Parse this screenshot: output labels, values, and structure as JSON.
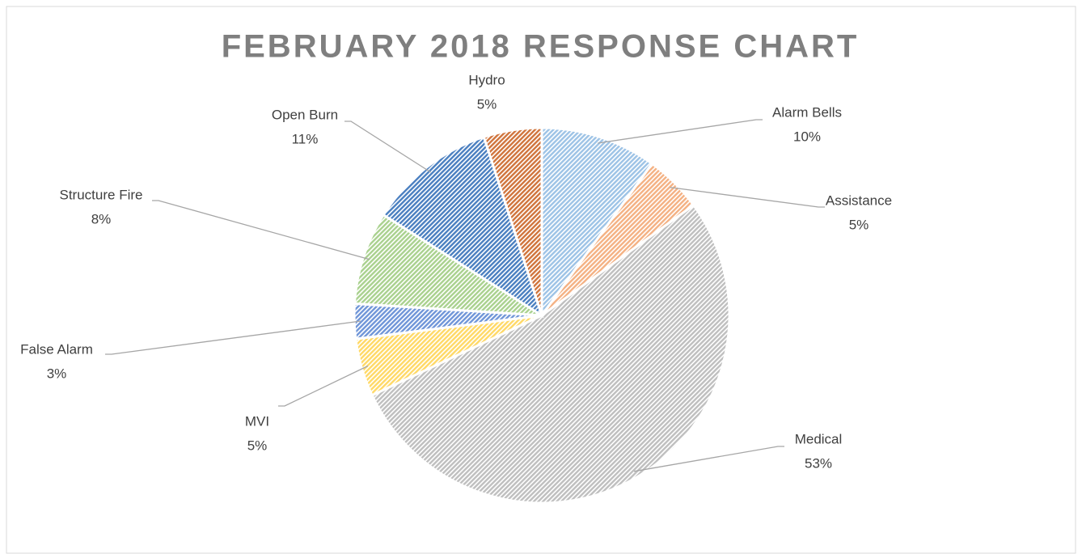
{
  "chart_data": {
    "type": "pie",
    "title": "FEBRUARY 2018 RESPONSE CHART",
    "categories": [
      "Alarm Bells",
      "Assistance",
      "Medical",
      "MVI",
      "False Alarm",
      "Structure Fire",
      "Open Burn",
      "Hydro"
    ],
    "values": [
      10,
      5,
      53,
      5,
      3,
      8,
      11,
      5
    ],
    "value_labels": [
      "10%",
      "5%",
      "53%",
      "5%",
      "3%",
      "8%",
      "11%",
      "5%"
    ],
    "colors": [
      "#9dc3e6",
      "#f4b183",
      "#bfbfbf",
      "#ffd966",
      "#6f95d8",
      "#a9d18e",
      "#4a7fc0",
      "#d0743c"
    ]
  }
}
